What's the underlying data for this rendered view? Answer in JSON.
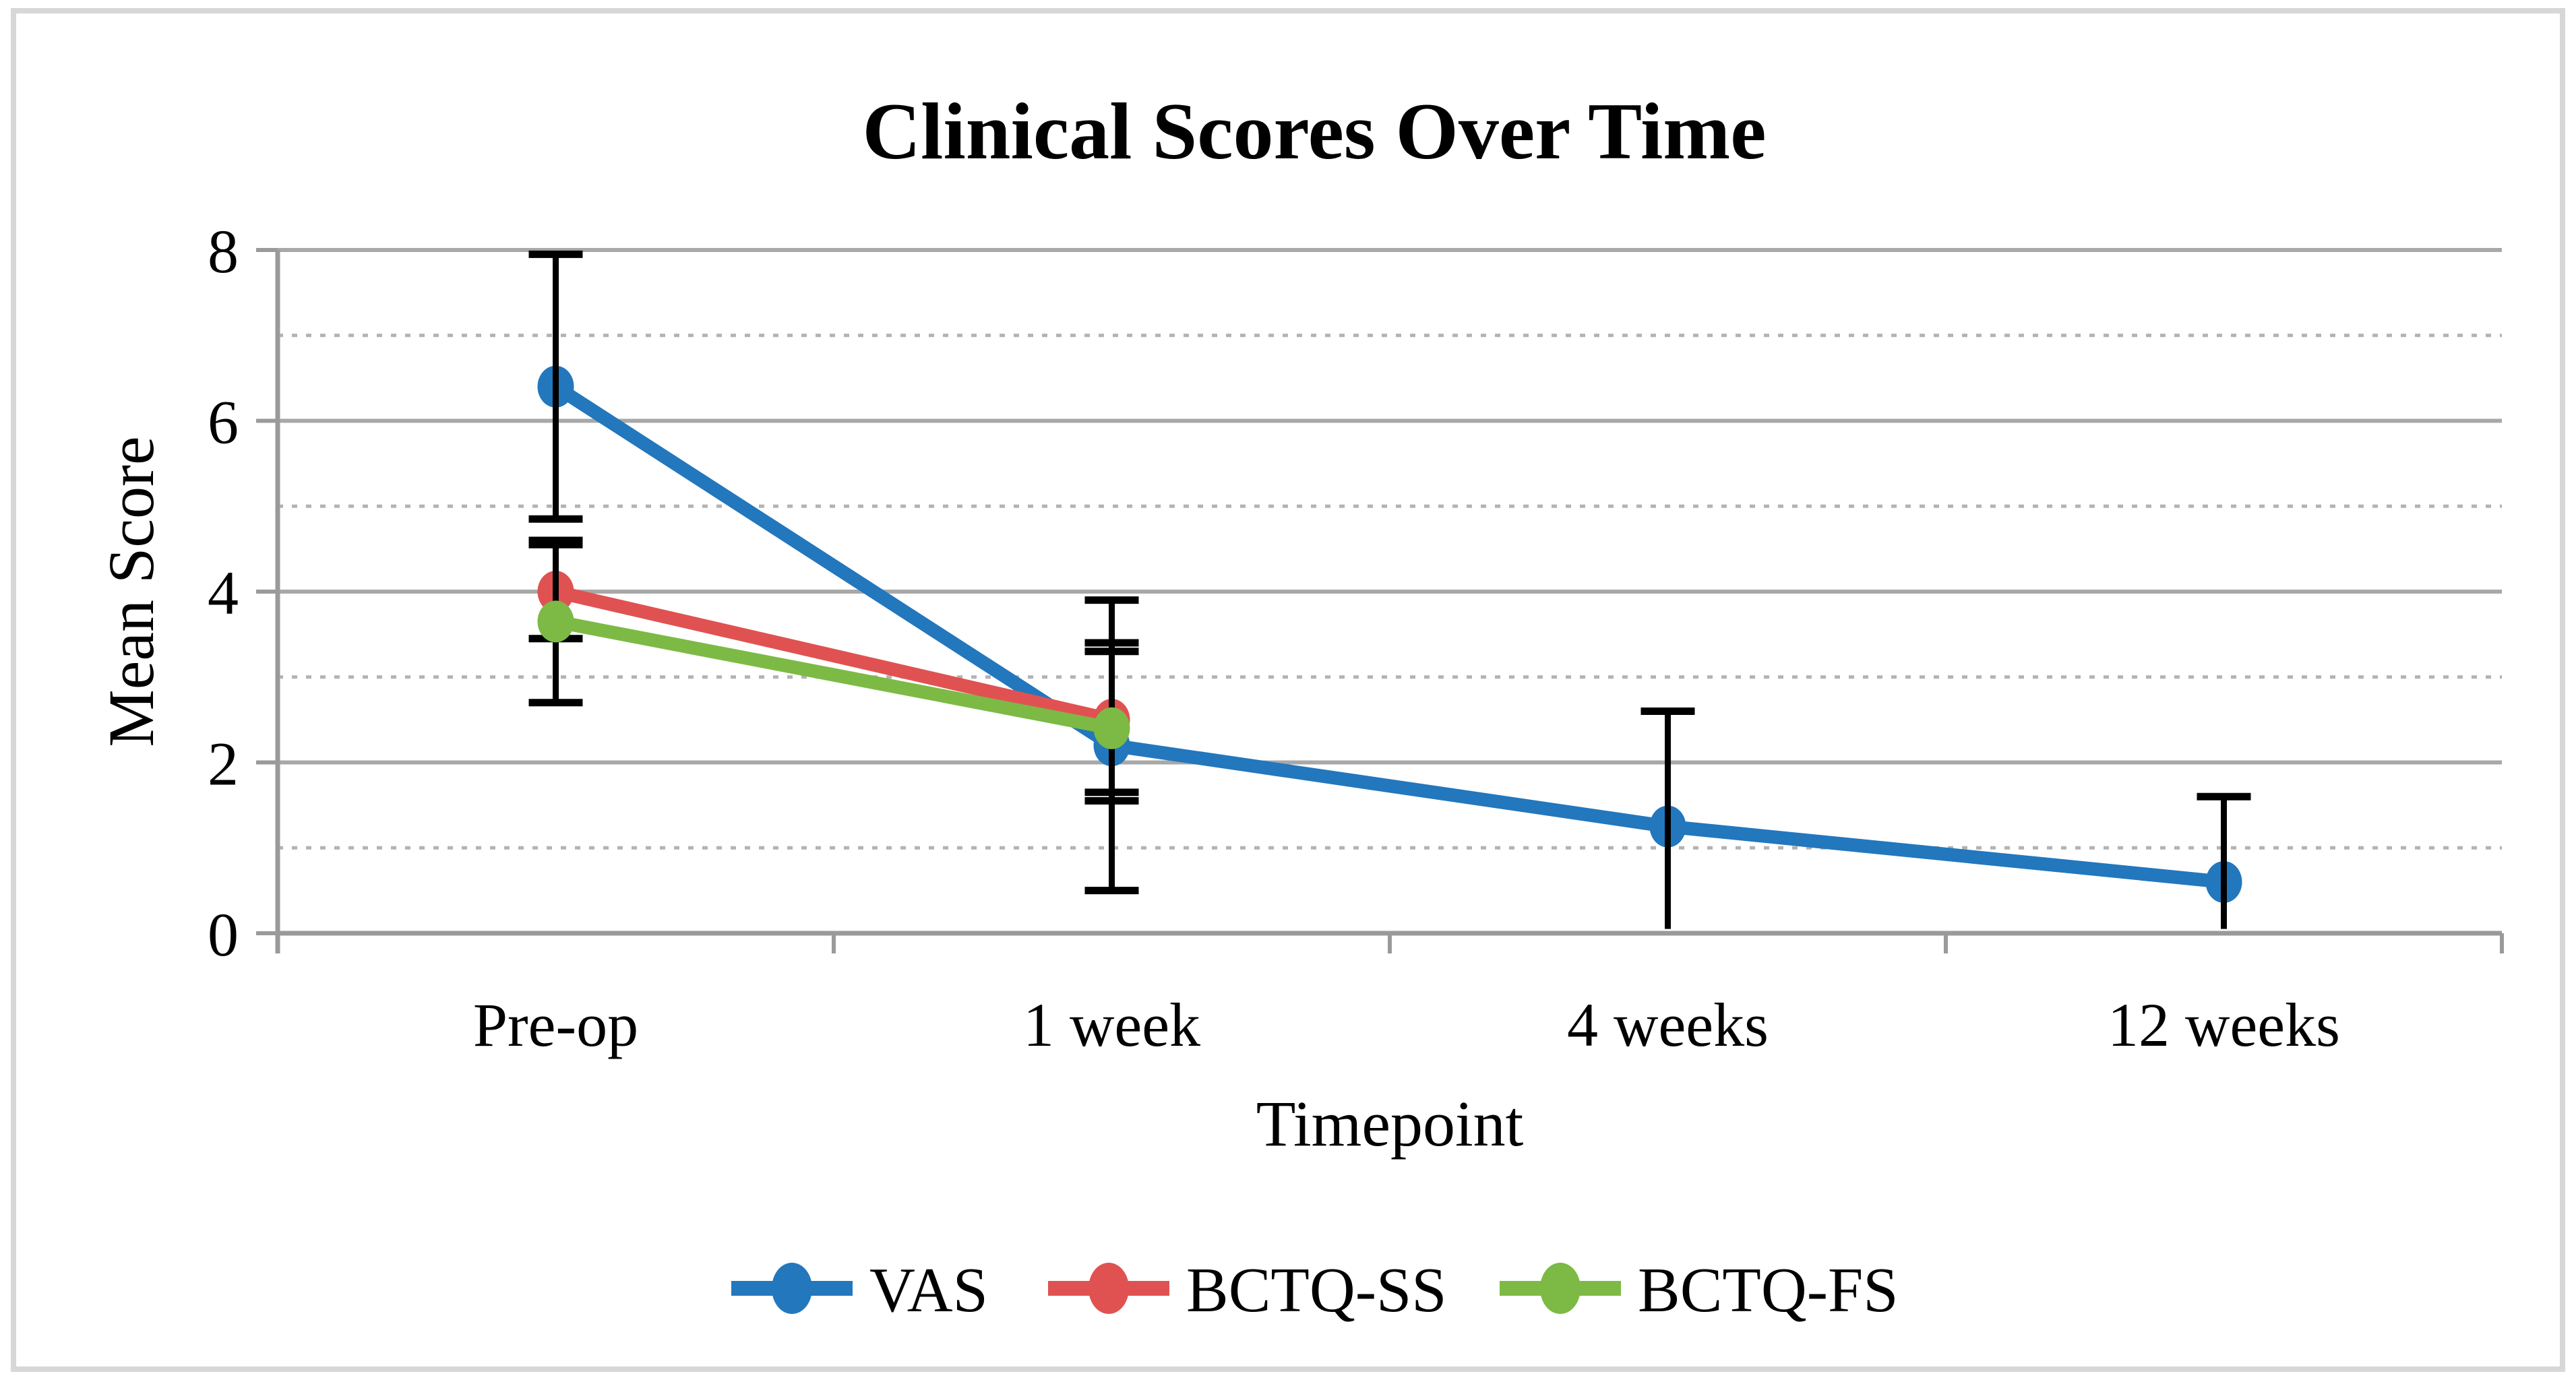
{
  "figure": {
    "background": "#ffffff",
    "border_color": "#d7d7d7"
  },
  "chart_data": {
    "type": "line",
    "title": "Clinical Scores Over Time",
    "xlabel": "Timepoint",
    "ylabel": "Mean Score",
    "categories": [
      "Pre-op",
      "1 week",
      "4 weeks",
      "12 weeks"
    ],
    "ylim": [
      0,
      8
    ],
    "yticks": [
      8,
      6,
      4,
      2,
      0
    ],
    "grid": {
      "solid_at": [
        0,
        2,
        4,
        6,
        8
      ],
      "dotted_at": [
        1,
        3,
        5,
        7
      ]
    },
    "legend_position": "bottom",
    "axis_color": "#9a9a9a",
    "gridline_solid_color": "#a8a8a8",
    "gridline_dotted_color": "#b3b3b3",
    "error_bar_color": "#000000",
    "series": [
      {
        "name": "VAS",
        "color": "#2277BD",
        "values": [
          6.4,
          2.2,
          1.25,
          0.6
        ],
        "error_low": [
          4.85,
          0.5,
          0.05,
          0.05
        ],
        "error_high": [
          7.95,
          3.9,
          2.6,
          1.6
        ],
        "cap_low": [
          true,
          true,
          false,
          false
        ],
        "cap_high": [
          true,
          true,
          true,
          true
        ],
        "draw_order": [
          "line",
          "markers",
          "errors"
        ]
      },
      {
        "name": "BCTQ-SS",
        "color": "#E05252",
        "values": [
          4.0,
          2.5,
          null,
          null
        ],
        "error_low": [
          3.45,
          1.65,
          null,
          null
        ],
        "error_high": [
          4.55,
          3.4,
          null,
          null
        ],
        "cap_low": [
          true,
          true,
          false,
          false
        ],
        "cap_high": [
          true,
          true,
          false,
          false
        ],
        "draw_order": [
          "line",
          "markers",
          "errors"
        ]
      },
      {
        "name": "BCTQ-FS",
        "color": "#7CBA45",
        "values": [
          3.65,
          2.4,
          null,
          null
        ],
        "error_low": [
          2.7,
          1.55,
          null,
          null
        ],
        "error_high": [
          4.6,
          3.3,
          null,
          null
        ],
        "cap_low": [
          true,
          true,
          false,
          false
        ],
        "cap_high": [
          true,
          true,
          false,
          false
        ],
        "draw_order": [
          "line",
          "errors",
          "markers"
        ]
      }
    ]
  }
}
